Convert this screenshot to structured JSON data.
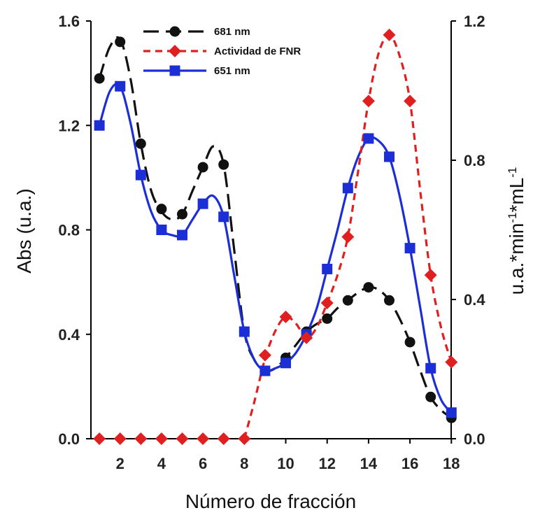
{
  "chart_data": {
    "type": "line",
    "xlabel": "Número de fracción",
    "ylabel_left": "Abs (u.a.)",
    "ylabel_right_parts": [
      "u.a.*min",
      "-1",
      "*mL",
      "-1"
    ],
    "xlim": [
      0.5,
      18
    ],
    "ylim_left": [
      0,
      1.6
    ],
    "ylim_right": [
      0,
      1.2
    ],
    "x_ticks": [
      "2",
      "4",
      "6",
      "8",
      "10",
      "12",
      "14",
      "16",
      "18"
    ],
    "y_left_ticks": [
      "0.0",
      "0.4",
      "0.8",
      "1.2",
      "1.6"
    ],
    "y_right_ticks": [
      "0.0",
      "0.4",
      "0.8",
      "1.2"
    ],
    "legend_position": "top-center",
    "grid": false,
    "series": [
      {
        "name": "681 nm",
        "axis": "left",
        "color": "#111111",
        "marker": "circle",
        "dash": "long-dash",
        "x": [
          1,
          2,
          3,
          4,
          5,
          6,
          7,
          8,
          9,
          10,
          11,
          12,
          13,
          14,
          15,
          16,
          17,
          18
        ],
        "y": [
          1.38,
          1.52,
          1.13,
          0.88,
          0.86,
          1.04,
          1.05,
          0.41,
          0.26,
          0.31,
          0.41,
          0.46,
          0.53,
          0.58,
          0.53,
          0.37,
          0.16,
          0.08
        ],
        "curve_x": [
          1,
          1.5,
          2,
          2.5,
          3,
          3.5,
          4,
          4.5,
          5,
          5.5,
          6,
          6.5,
          7,
          7.5,
          8,
          8.5,
          9,
          9.5,
          10,
          10.5,
          11,
          11.5,
          12,
          12.5,
          13,
          13.5,
          14,
          14.5,
          15,
          15.5,
          16,
          16.5,
          17,
          17.5,
          18
        ],
        "curve_y": [
          1.38,
          1.5,
          1.53,
          1.38,
          1.13,
          0.95,
          0.87,
          0.84,
          0.86,
          0.95,
          1.04,
          1.12,
          1.05,
          0.73,
          0.41,
          0.3,
          0.26,
          0.27,
          0.31,
          0.36,
          0.41,
          0.44,
          0.46,
          0.5,
          0.53,
          0.56,
          0.58,
          0.57,
          0.53,
          0.46,
          0.37,
          0.26,
          0.16,
          0.11,
          0.08
        ]
      },
      {
        "name": "Actividad de FNR",
        "axis": "right",
        "color": "#e02020",
        "marker": "diamond",
        "dash": "short-dash",
        "x": [
          1,
          2,
          3,
          4,
          5,
          6,
          7,
          8,
          9,
          10,
          11,
          12,
          13,
          14,
          15,
          16,
          17,
          18
        ],
        "y": [
          0,
          0,
          0,
          0,
          0,
          0,
          0,
          0,
          0.24,
          0.35,
          0.29,
          0.39,
          0.58,
          0.97,
          1.16,
          0.97,
          0.47,
          0.22
        ],
        "curve_x": [
          8,
          8.5,
          9,
          9.5,
          10,
          10.5,
          11,
          11.5,
          12,
          12.5,
          13,
          13.5,
          14,
          14.5,
          15,
          15.5,
          16,
          16.5,
          17,
          17.5,
          18
        ],
        "curve_y": [
          0,
          0.11,
          0.23,
          0.31,
          0.35,
          0.33,
          0.29,
          0.32,
          0.39,
          0.47,
          0.58,
          0.77,
          0.97,
          1.11,
          1.16,
          1.1,
          0.97,
          0.71,
          0.47,
          0.32,
          0.22
        ]
      },
      {
        "name": "651 nm",
        "axis": "left",
        "color": "#1c2fd6",
        "marker": "square",
        "dash": "solid",
        "x": [
          1,
          2,
          3,
          4,
          5,
          6,
          7,
          8,
          9,
          10,
          11,
          12,
          13,
          14,
          15,
          16,
          17,
          18
        ],
        "y": [
          1.2,
          1.35,
          1.01,
          0.8,
          0.78,
          0.9,
          0.85,
          0.41,
          0.26,
          0.29,
          0.4,
          0.65,
          0.96,
          1.15,
          1.08,
          0.73,
          0.27,
          0.1
        ],
        "curve_x": [
          1,
          1.5,
          2,
          2.5,
          3,
          3.5,
          4,
          4.5,
          5,
          5.5,
          6,
          6.5,
          7,
          7.5,
          8,
          8.5,
          9,
          9.5,
          10,
          10.5,
          11,
          11.5,
          12,
          12.5,
          13,
          13.5,
          14,
          14.5,
          15,
          15.5,
          16,
          16.5,
          17,
          17.5,
          18
        ],
        "curve_y": [
          1.2,
          1.33,
          1.35,
          1.21,
          1.01,
          0.87,
          0.8,
          0.78,
          0.78,
          0.84,
          0.9,
          0.93,
          0.85,
          0.63,
          0.41,
          0.3,
          0.26,
          0.27,
          0.29,
          0.33,
          0.4,
          0.5,
          0.65,
          0.8,
          0.96,
          1.08,
          1.15,
          1.14,
          1.08,
          0.93,
          0.73,
          0.5,
          0.27,
          0.15,
          0.1
        ]
      }
    ]
  }
}
